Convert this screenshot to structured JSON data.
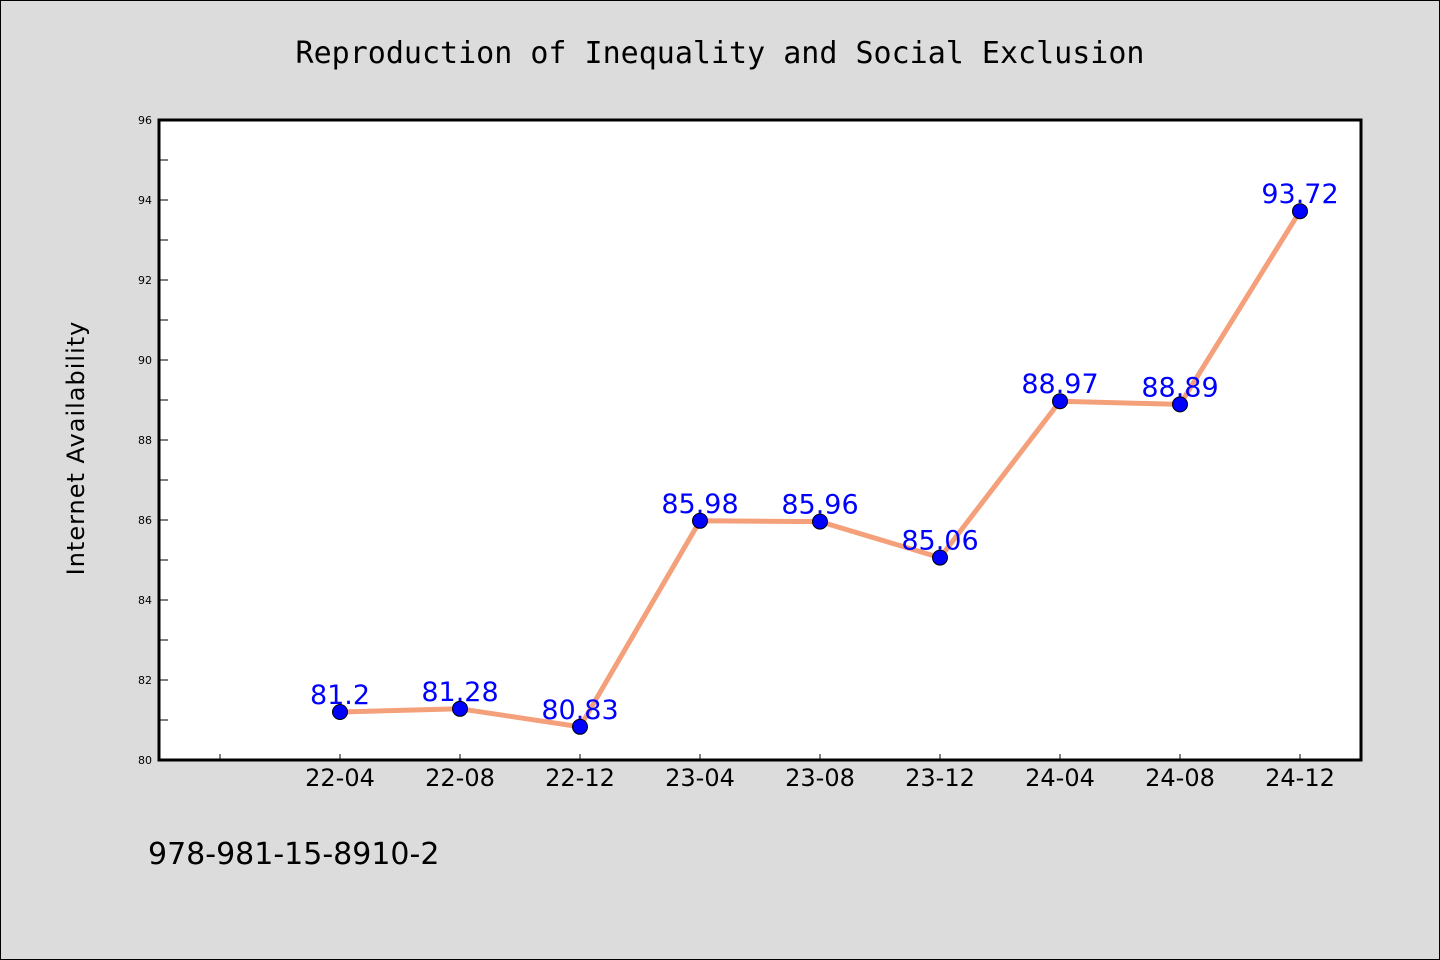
{
  "chart_data": {
    "type": "line",
    "title": "Reproduction of Inequality and Social Exclusion",
    "xlabel": "",
    "ylabel": "Internet Availability",
    "categories": [
      "22-04",
      "22-08",
      "22-12",
      "23-04",
      "23-08",
      "23-12",
      "24-04",
      "24-08",
      "24-12"
    ],
    "series": [
      {
        "values": [
          81.2,
          81.28,
          80.83,
          85.98,
          85.96,
          85.06,
          88.97,
          88.89,
          93.72
        ],
        "data_labels": [
          "81.2",
          "81.28",
          "80.83",
          "85.98",
          "85.96",
          "85.06",
          "88.97",
          "88.89",
          "93.72"
        ]
      }
    ],
    "ylim": [
      80,
      96
    ],
    "yticks": [
      "80",
      "82",
      "84",
      "86",
      "88",
      "90",
      "92",
      "94",
      "96"
    ],
    "grid": false,
    "line_color": "#f4a07a",
    "marker_color": "#0000ff",
    "label_color": "#0000ff",
    "background": "#dcdcdc",
    "plot_background": "#ffffff"
  },
  "footer_text": "978-981-15-8910-2"
}
